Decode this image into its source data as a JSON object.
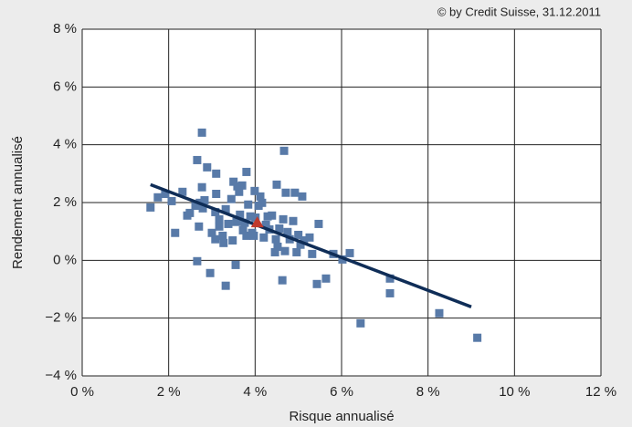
{
  "chart_data": {
    "type": "scatter",
    "source_note": "© by Credit Suisse, 31.12.2011",
    "xlabel": "Risque annualisé",
    "ylabel": "Rendement annualisé",
    "xlim": [
      0,
      12
    ],
    "ylim": [
      -4,
      8
    ],
    "xticks": [
      {
        "value": 0,
        "label": "0 %"
      },
      {
        "value": 2,
        "label": "2 %"
      },
      {
        "value": 4,
        "label": "4 %"
      },
      {
        "value": 6,
        "label": "6 %"
      },
      {
        "value": 8,
        "label": "8 %"
      },
      {
        "value": 10,
        "label": "10 %"
      },
      {
        "value": 12,
        "label": "12 %"
      }
    ],
    "yticks": [
      {
        "value": -4,
        "label": "−4 %"
      },
      {
        "value": -2,
        "label": "−2 %"
      },
      {
        "value": 0,
        "label": "0 %"
      },
      {
        "value": 2,
        "label": "2 %"
      },
      {
        "value": 4,
        "label": "4 %"
      },
      {
        "value": 6,
        "label": "6 %"
      },
      {
        "value": 8,
        "label": "8 %"
      }
    ],
    "grid": true,
    "points": {
      "color": "#587aa8",
      "x": [
        1.58,
        1.75,
        1.92,
        2.07,
        2.15,
        2.32,
        2.49,
        2.62,
        2.66,
        2.66,
        2.7,
        2.72,
        2.77,
        2.77,
        2.79,
        2.83,
        2.89,
        2.96,
        3.0,
        3.08,
        3.08,
        3.1,
        3.1,
        3.17,
        3.17,
        3.25,
        3.27,
        3.32,
        3.32,
        3.38,
        3.45,
        3.48,
        3.5,
        3.55,
        3.57,
        3.59,
        3.63,
        3.7,
        3.72,
        3.76,
        3.8,
        3.84,
        3.89,
        3.93,
        3.97,
        3.99,
        4.01,
        4.08,
        4.12,
        4.16,
        4.2,
        4.25,
        4.29,
        4.33,
        4.39,
        4.46,
        4.48,
        4.5,
        4.52,
        4.56,
        4.63,
        4.65,
        4.67,
        4.69,
        4.71,
        4.75,
        4.8,
        4.88,
        4.92,
        4.96,
        5.0,
        5.05,
        5.09,
        5.13,
        5.26,
        5.32,
        5.43,
        5.47,
        5.64,
        5.81,
        6.02,
        6.19,
        6.44,
        7.12,
        7.12,
        8.26,
        9.14,
        2.43,
        3.65,
        3.8
      ],
      "y": [
        1.83,
        2.18,
        2.3,
        2.05,
        0.95,
        2.37,
        1.64,
        1.89,
        3.47,
        -0.03,
        1.17,
        1.99,
        4.42,
        2.53,
        1.8,
        2.08,
        3.22,
        -0.44,
        0.95,
        1.67,
        0.73,
        3.0,
        2.3,
        1.17,
        1.42,
        0.85,
        0.6,
        -0.88,
        1.77,
        1.26,
        2.12,
        0.69,
        2.72,
        -0.16,
        1.33,
        2.56,
        2.37,
        2.59,
        1.04,
        1.3,
        3.06,
        1.93,
        1.52,
        0.95,
        0.85,
        2.4,
        1.48,
        1.89,
        2.21,
        1.99,
        0.79,
        1.23,
        1.52,
        1.07,
        1.55,
        0.28,
        0.73,
        2.62,
        0.47,
        1.1,
        -0.69,
        1.42,
        3.79,
        0.32,
        2.34,
        0.98,
        0.73,
        1.36,
        2.34,
        0.28,
        0.88,
        0.54,
        2.21,
        0.69,
        0.79,
        0.22,
        -0.82,
        1.26,
        -0.63,
        0.22,
        0.03,
        0.25,
        -2.18,
        -0.63,
        -1.14,
        -1.83,
        -2.68,
        1.55,
        1.58,
        0.85
      ]
    },
    "highlight": {
      "color": "#c0392b",
      "x": [
        4.05
      ],
      "y": [
        1.3
      ]
    },
    "trend_line": {
      "color": "#0f2d57",
      "x": [
        1.58,
        9.0
      ],
      "y": [
        2.62,
        -1.61
      ]
    }
  }
}
